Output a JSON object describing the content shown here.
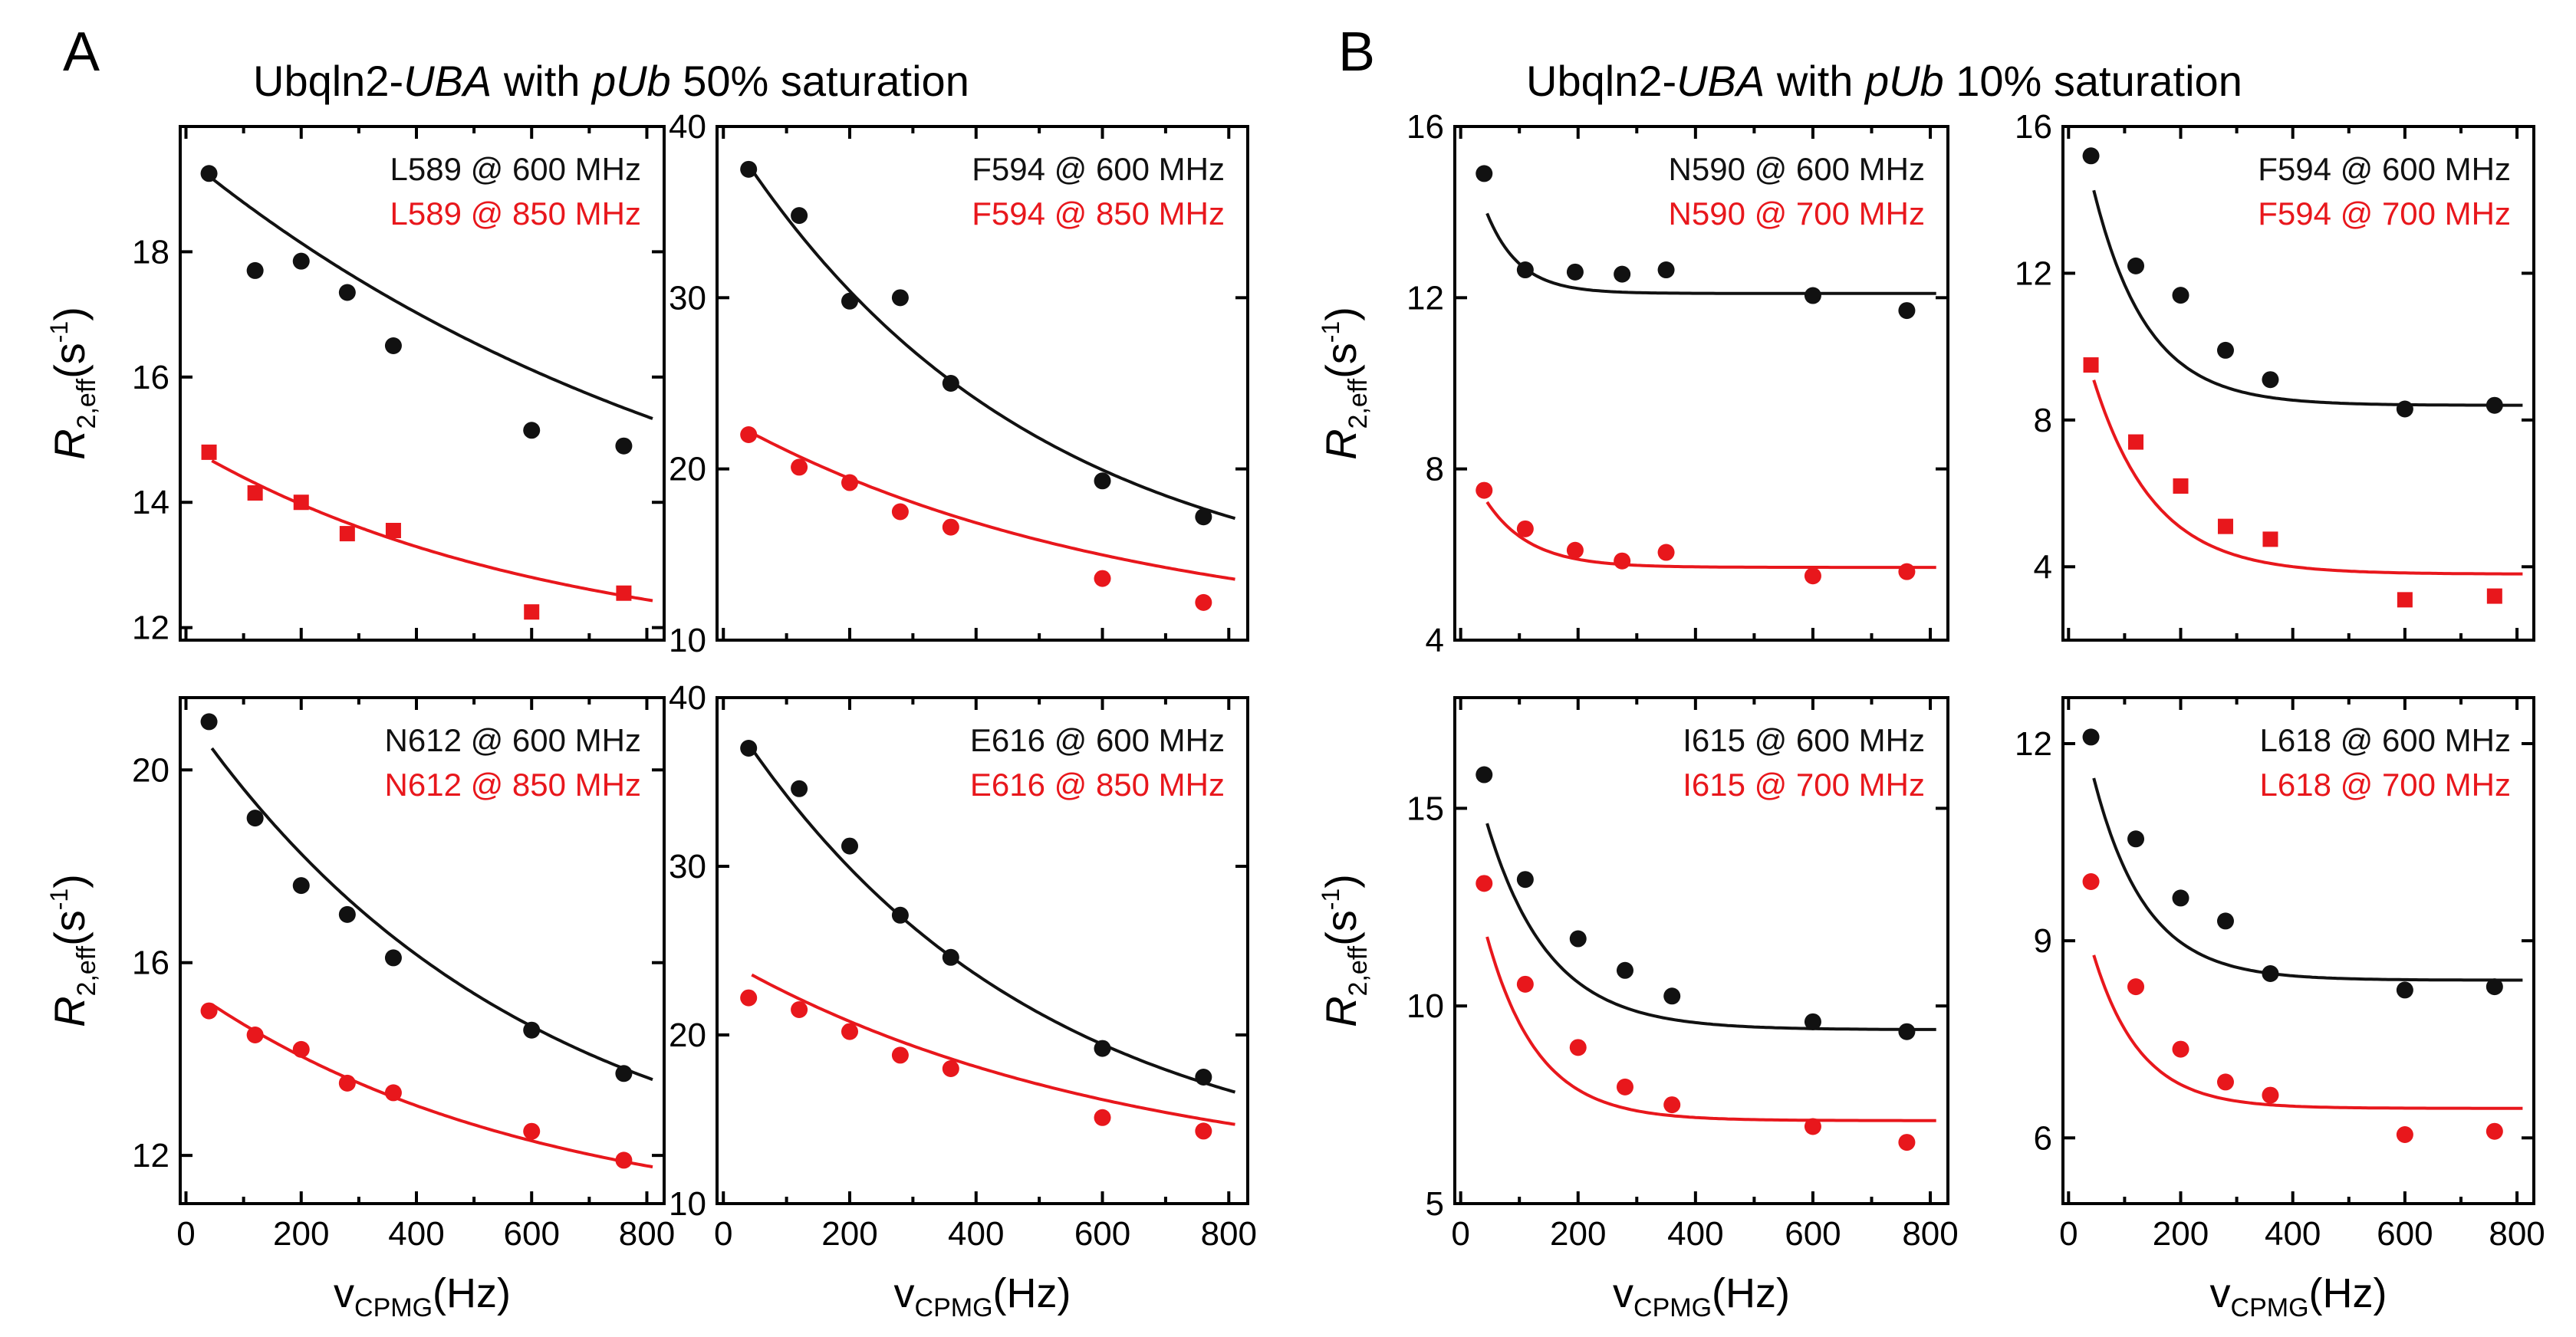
{
  "figure": {
    "colors": {
      "black": "#111111",
      "red": "#e8171c"
    },
    "panels": [
      {
        "letter": "A",
        "title": {
          "pre": "Ubqln2-",
          "uba": "UBA",
          "mid": " with ",
          "pub": "pUb",
          "post": " 50% saturation"
        }
      },
      {
        "letter": "B",
        "title": {
          "pre": "Ubqln2-",
          "uba": "UBA",
          "mid": " with ",
          "pub": "pUb",
          "post": " 10% saturation"
        }
      }
    ],
    "ylabel": {
      "main": "R",
      "sub": "2,eff",
      "unit_open": "(s",
      "sup": "-1",
      "unit_close": ")"
    },
    "xlabel": {
      "main": "v",
      "sub": "CPMG",
      "unit": "(Hz)"
    }
  },
  "chart_data": [
    {
      "type": "scatter",
      "panel": "A",
      "title": "L589",
      "xlabel": "vCPMG(Hz)",
      "ylabel": "R2,eff(s-1)",
      "xlim": [
        -10,
        830
      ],
      "ylim": [
        11.8,
        20
      ],
      "yticks": [
        12,
        14,
        16,
        18
      ],
      "xticks": [
        0,
        200,
        400,
        600,
        800
      ],
      "show_xticklabels": false,
      "show_xlabel": false,
      "show_ylabel": true,
      "series": [
        {
          "name": "L589 @ 600 MHz",
          "color": "#111111",
          "marker": "circle",
          "x": [
            40,
            120,
            200,
            280,
            360,
            600,
            760
          ],
          "y": [
            19.25,
            17.7,
            17.85,
            17.35,
            16.5,
            15.15,
            14.9
          ],
          "fit": {
            "A": 12.0,
            "B": 7.5,
            "k": 0.001
          }
        },
        {
          "name": "L589 @ 850 MHz",
          "color": "#e8171c",
          "marker": "square",
          "x": [
            40,
            120,
            200,
            280,
            360,
            600,
            760
          ],
          "y": [
            14.8,
            14.15,
            14.0,
            13.5,
            13.55,
            12.25,
            12.55
          ],
          "fit": {
            "A": 11.5,
            "B": 3.4,
            "k": 0.0016
          }
        }
      ]
    },
    {
      "type": "scatter",
      "panel": "A",
      "title": "F594",
      "xlabel": "vCPMG(Hz)",
      "ylabel": "R2,eff(s-1)",
      "xlim": [
        -10,
        830
      ],
      "ylim": [
        10,
        40
      ],
      "yticks": [
        10,
        20,
        30,
        40
      ],
      "xticks": [
        0,
        200,
        400,
        600,
        800
      ],
      "show_xticklabels": false,
      "show_xlabel": false,
      "show_ylabel": false,
      "series": [
        {
          "name": "F594 @ 600 MHz",
          "color": "#111111",
          "marker": "circle",
          "x": [
            40,
            120,
            200,
            280,
            360,
            600,
            760
          ],
          "y": [
            37.5,
            34.8,
            29.8,
            30.0,
            25.0,
            19.3,
            17.2
          ],
          "fit": {
            "A": 12.0,
            "B": 28.0,
            "k": 0.0021
          }
        },
        {
          "name": "F594 @ 850 MHz",
          "color": "#e8171c",
          "marker": "circle",
          "x": [
            40,
            120,
            200,
            280,
            360,
            600,
            760
          ],
          "y": [
            22.0,
            20.1,
            19.2,
            17.5,
            16.6,
            13.6,
            12.2
          ],
          "fit": {
            "A": 10.0,
            "B": 13.0,
            "k": 0.0016
          }
        }
      ]
    },
    {
      "type": "scatter",
      "panel": "B",
      "title": "N590",
      "xlabel": "vCPMG(Hz)",
      "ylabel": "R2,eff(s-1)",
      "xlim": [
        -10,
        830
      ],
      "ylim": [
        4,
        16
      ],
      "yticks": [
        4,
        8,
        12,
        16
      ],
      "xticks": [
        0,
        200,
        400,
        600,
        800
      ],
      "show_xticklabels": false,
      "show_xlabel": false,
      "show_ylabel": true,
      "series": [
        {
          "name": "N590 @ 600 MHz",
          "color": "#111111",
          "marker": "circle",
          "x": [
            40,
            110,
            195,
            275,
            350,
            600,
            760
          ],
          "y": [
            14.9,
            12.65,
            12.6,
            12.55,
            12.65,
            12.05,
            11.7
          ],
          "fit": {
            "A": 12.1,
            "B": 4.2,
            "k": 0.018
          }
        },
        {
          "name": "N590 @ 700 MHz",
          "color": "#e8171c",
          "marker": "circle",
          "x": [
            40,
            110,
            195,
            275,
            350,
            600,
            760
          ],
          "y": [
            7.5,
            6.6,
            6.1,
            5.85,
            6.05,
            5.5,
            5.6
          ],
          "fit": {
            "A": 5.7,
            "B": 2.8,
            "k": 0.0135
          }
        }
      ]
    },
    {
      "type": "scatter",
      "panel": "B",
      "title": "F594",
      "xlabel": "vCPMG(Hz)",
      "ylabel": "R2,eff(s-1)",
      "xlim": [
        -10,
        830
      ],
      "ylim": [
        2,
        16
      ],
      "yticks": [
        4,
        8,
        12,
        16
      ],
      "xticks": [
        0,
        200,
        400,
        600,
        800
      ],
      "show_xticklabels": false,
      "show_xlabel": false,
      "show_ylabel": false,
      "series": [
        {
          "name": "F594 @ 600 MHz",
          "color": "#111111",
          "marker": "circle",
          "x": [
            40,
            120,
            200,
            280,
            360,
            600,
            760
          ],
          "y": [
            15.2,
            12.2,
            11.4,
            9.9,
            9.1,
            8.3,
            8.4
          ],
          "fit": {
            "A": 8.4,
            "B": 9.4,
            "k": 0.0105
          }
        },
        {
          "name": "F594 @ 700 MHz",
          "color": "#e8171c",
          "marker": "square",
          "x": [
            40,
            120,
            200,
            280,
            360,
            600,
            760
          ],
          "y": [
            9.5,
            7.4,
            6.2,
            5.1,
            4.75,
            3.1,
            3.2
          ],
          "fit": {
            "A": 3.8,
            "B": 8.0,
            "k": 0.0092
          }
        }
      ]
    },
    {
      "type": "scatter",
      "panel": "A",
      "title": "N612",
      "xlabel": "vCPMG(Hz)",
      "ylabel": "R2,eff(s-1)",
      "xlim": [
        -10,
        830
      ],
      "ylim": [
        11,
        21.5
      ],
      "yticks": [
        12,
        16,
        20
      ],
      "xticks": [
        0,
        200,
        400,
        600,
        800
      ],
      "show_xticklabels": true,
      "show_xlabel": true,
      "show_ylabel": true,
      "series": [
        {
          "name": "N612 @ 600 MHz",
          "color": "#111111",
          "marker": "circle",
          "x": [
            40,
            120,
            200,
            280,
            360,
            600,
            760
          ],
          "y": [
            21.0,
            19.0,
            17.6,
            17.0,
            16.1,
            14.6,
            13.7
          ],
          "fit": {
            "A": 11.0,
            "B": 10.2,
            "k": 0.0017
          }
        },
        {
          "name": "N612 @ 850 MHz",
          "color": "#e8171c",
          "marker": "circle",
          "x": [
            40,
            120,
            200,
            280,
            360,
            600,
            760
          ],
          "y": [
            15.0,
            14.5,
            14.2,
            13.5,
            13.3,
            12.5,
            11.9
          ],
          "fit": {
            "A": 10.5,
            "B": 5.0,
            "k": 0.0017
          }
        }
      ]
    },
    {
      "type": "scatter",
      "panel": "A",
      "title": "E616",
      "xlabel": "vCPMG(Hz)",
      "ylabel": "R2,eff(s-1)",
      "xlim": [
        -10,
        830
      ],
      "ylim": [
        10,
        40
      ],
      "yticks": [
        10,
        20,
        30,
        40
      ],
      "xticks": [
        0,
        200,
        400,
        600,
        800
      ],
      "show_xticklabels": true,
      "show_xlabel": true,
      "show_ylabel": false,
      "series": [
        {
          "name": "E616 @ 600 MHz",
          "color": "#111111",
          "marker": "circle",
          "x": [
            40,
            120,
            200,
            280,
            360,
            600,
            760
          ],
          "y": [
            37.0,
            34.6,
            31.2,
            27.1,
            24.6,
            19.2,
            17.5
          ],
          "fit": {
            "A": 11.5,
            "B": 28.0,
            "k": 0.0021
          }
        },
        {
          "name": "E616 @ 850 MHz",
          "color": "#e8171c",
          "marker": "circle",
          "x": [
            40,
            120,
            200,
            280,
            360,
            600,
            760
          ],
          "y": [
            22.2,
            21.5,
            20.2,
            18.8,
            18.0,
            15.1,
            14.3
          ],
          "fit": {
            "A": 11.0,
            "B": 13.5,
            "k": 0.0016
          }
        }
      ]
    },
    {
      "type": "scatter",
      "panel": "B",
      "title": "I615",
      "xlabel": "vCPMG(Hz)",
      "ylabel": "R2,eff(s-1)",
      "xlim": [
        -10,
        830
      ],
      "ylim": [
        5,
        17.8
      ],
      "yticks": [
        5,
        10,
        15
      ],
      "xticks": [
        0,
        200,
        400,
        600,
        800
      ],
      "show_xticklabels": true,
      "show_xlabel": true,
      "show_ylabel": true,
      "series": [
        {
          "name": "I615 @ 600 MHz",
          "color": "#111111",
          "marker": "circle",
          "x": [
            40,
            110,
            200,
            280,
            360,
            600,
            760
          ],
          "y": [
            15.85,
            13.2,
            11.7,
            10.9,
            10.25,
            9.6,
            9.35
          ],
          "fit": {
            "A": 9.4,
            "B": 8.0,
            "k": 0.0095
          }
        },
        {
          "name": "I615 @ 700 MHz",
          "color": "#e8171c",
          "marker": "circle",
          "x": [
            40,
            110,
            200,
            280,
            360,
            600,
            760
          ],
          "y": [
            13.1,
            10.55,
            8.95,
            7.95,
            7.5,
            6.95,
            6.55
          ],
          "fit": {
            "A": 7.1,
            "B": 7.8,
            "k": 0.0115
          }
        }
      ]
    },
    {
      "type": "scatter",
      "panel": "B",
      "title": "L618",
      "xlabel": "vCPMG(Hz)",
      "ylabel": "R2,eff(s-1)",
      "xlim": [
        -10,
        830
      ],
      "ylim": [
        5,
        12.7
      ],
      "yticks": [
        6,
        9,
        12
      ],
      "xticks": [
        0,
        200,
        400,
        600,
        800
      ],
      "show_xticklabels": true,
      "show_xlabel": true,
      "show_ylabel": false,
      "series": [
        {
          "name": "L618 @ 600 MHz",
          "color": "#111111",
          "marker": "circle",
          "x": [
            40,
            120,
            200,
            280,
            360,
            600,
            760
          ],
          "y": [
            12.1,
            10.55,
            9.65,
            9.3,
            8.5,
            8.25,
            8.3
          ],
          "fit": {
            "A": 8.4,
            "B": 5.0,
            "k": 0.0108
          }
        },
        {
          "name": "L618 @ 700 MHz",
          "color": "#e8171c",
          "marker": "circle",
          "x": [
            40,
            120,
            200,
            280,
            360,
            600,
            760
          ],
          "y": [
            9.9,
            8.3,
            7.35,
            6.85,
            6.65,
            6.05,
            6.1
          ],
          "fit": {
            "A": 6.45,
            "B": 4.0,
            "k": 0.012
          }
        }
      ]
    }
  ]
}
